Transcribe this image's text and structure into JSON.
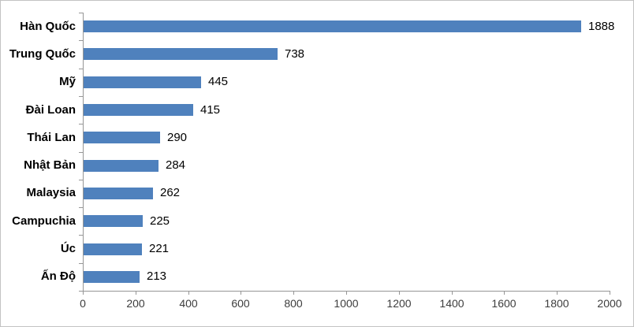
{
  "chart_data": {
    "type": "bar",
    "orientation": "horizontal",
    "title": "",
    "xlabel": "",
    "ylabel": "",
    "categories": [
      "Hàn Quốc",
      "Trung Quốc",
      "Mỹ",
      "Đài Loan",
      "Thái Lan",
      "Nhật Bản",
      "Malaysia",
      "Campuchia",
      "Úc",
      "Ấn Độ"
    ],
    "values": [
      1888,
      738,
      445,
      415,
      290,
      284,
      262,
      225,
      221,
      213
    ],
    "data_labels": [
      "1888",
      "738",
      "445",
      "415",
      "290",
      "284",
      "262",
      "225",
      "221",
      "213"
    ],
    "xlim": [
      0,
      2000
    ],
    "x_ticks": [
      0,
      200,
      400,
      600,
      800,
      1000,
      1200,
      1400,
      1600,
      1800,
      2000
    ],
    "grid": false,
    "legend": false,
    "colors": {
      "bar_fill": "#4F81BD",
      "axis_line": "#969696",
      "category_text": "#000000",
      "value_text": "#000000",
      "tick_text": "#3d3d3d",
      "frame_border": "#c3c3c3",
      "background": "#ffffff"
    }
  }
}
